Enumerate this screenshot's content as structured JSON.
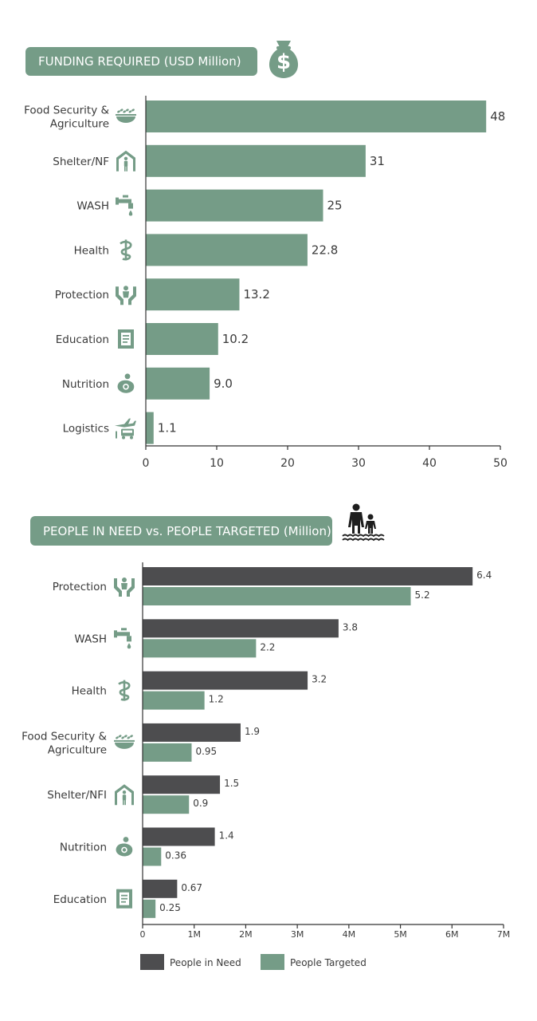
{
  "colors": {
    "green": "#759c87",
    "dark": "#4d4d4f",
    "axis": "#333333",
    "text": "#3a3a3a"
  },
  "header_icons": {
    "funding": "money-bag-icon",
    "people": "family-flood-icon"
  },
  "chart_data": [
    {
      "type": "bar",
      "orientation": "horizontal",
      "title": "FUNDING REQUIRED (USD Million)",
      "categories": [
        {
          "label": [
            "Food Security &",
            "Agriculture"
          ],
          "icon": "food-bowl-icon"
        },
        {
          "label": [
            "Shelter/NF"
          ],
          "icon": "shelter-icon"
        },
        {
          "label": [
            "WASH"
          ],
          "icon": "water-tap-icon"
        },
        {
          "label": [
            "Health"
          ],
          "icon": "health-icon"
        },
        {
          "label": [
            "Protection"
          ],
          "icon": "protection-icon"
        },
        {
          "label": [
            "Education"
          ],
          "icon": "education-icon"
        },
        {
          "label": [
            "Nutrition"
          ],
          "icon": "nutrition-icon"
        },
        {
          "label": [
            "Logistics"
          ],
          "icon": "logistics-icon"
        }
      ],
      "values": [
        48,
        31,
        25,
        22.8,
        13.2,
        10.2,
        9.0,
        1.1
      ],
      "value_labels": [
        "48",
        "31",
        "25",
        "22.8",
        "13.2",
        "10.2",
        "9.0",
        "1.1"
      ],
      "xlim": [
        0,
        50
      ],
      "xticks": [
        "0",
        "10",
        "20",
        "30",
        "40",
        "50"
      ]
    },
    {
      "type": "bar",
      "orientation": "horizontal",
      "title": "PEOPLE IN NEED vs. PEOPLE TARGETED (Million)",
      "categories": [
        {
          "label": [
            "Protection"
          ],
          "icon": "protection-icon"
        },
        {
          "label": [
            "WASH"
          ],
          "icon": "water-tap-icon"
        },
        {
          "label": [
            "Health"
          ],
          "icon": "health-icon"
        },
        {
          "label": [
            "Food Security &",
            "Agriculture"
          ],
          "icon": "food-bowl-icon"
        },
        {
          "label": [
            "Shelter/NFI"
          ],
          "icon": "shelter-icon"
        },
        {
          "label": [
            "Nutrition"
          ],
          "icon": "nutrition-icon"
        },
        {
          "label": [
            "Education"
          ],
          "icon": "education-icon"
        }
      ],
      "series": [
        {
          "name": "People in Need",
          "values": [
            6.4,
            3.8,
            3.2,
            1.9,
            1.5,
            1.4,
            0.67
          ],
          "value_labels": [
            "6.4",
            "3.8",
            "3.2",
            "1.9",
            "1.5",
            "1.4",
            "0.67"
          ]
        },
        {
          "name": "People Targeted",
          "values": [
            5.2,
            2.2,
            1.2,
            0.95,
            0.9,
            0.36,
            0.25
          ],
          "value_labels": [
            "5.2",
            "2.2",
            "1.2",
            "0.95",
            "0.9",
            "0.36",
            "0.25"
          ]
        }
      ],
      "xlim": [
        0,
        7
      ],
      "xticks": [
        "0",
        "1M",
        "2M",
        "3M",
        "4M",
        "5M",
        "6M",
        "7M"
      ],
      "legend": "bottom"
    }
  ]
}
